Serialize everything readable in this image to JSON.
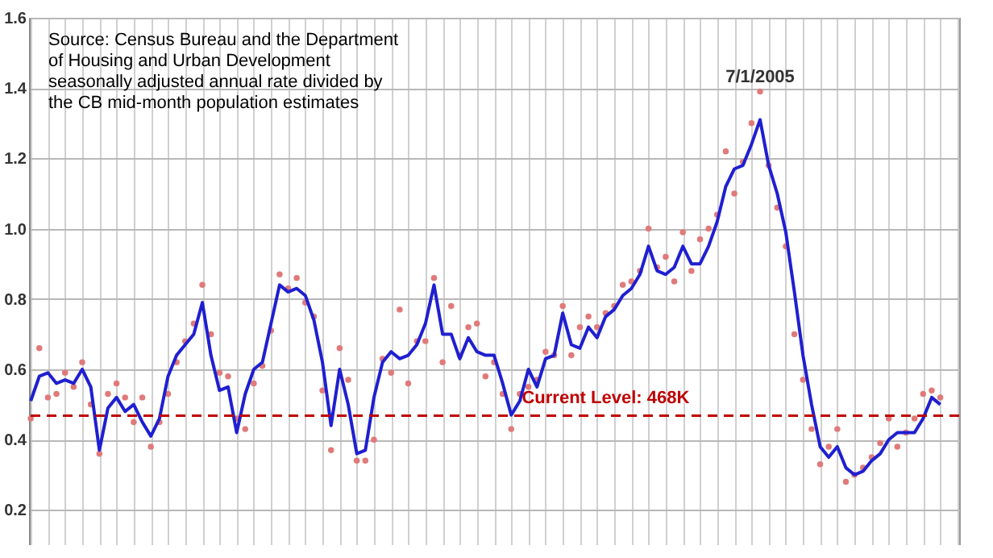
{
  "chart_data": {
    "type": "line",
    "annotations": [
      "Source: Census Bureau and the Department\nof Housing and Urban Development\nseasonally adjusted annual rate divided by\nthe CB mid-month population estimates",
      {
        "text": "7/1/2005",
        "y": 1.39
      }
    ],
    "categories": [
      null,
      null,
      null,
      null,
      null,
      null,
      null,
      null,
      null,
      null,
      null,
      null,
      null,
      null,
      null,
      null,
      null,
      null,
      null,
      null,
      null,
      null,
      null,
      null,
      null,
      null,
      null,
      null,
      null,
      null,
      null,
      null,
      null,
      null,
      null,
      null,
      null,
      null,
      null,
      null,
      null,
      null,
      null,
      null,
      null,
      null,
      null,
      null,
      null,
      null,
      null,
      null,
      null,
      null,
      null,
      null,
      null,
      null,
      null,
      null,
      null,
      null,
      null,
      null,
      null,
      null,
      null,
      null,
      null,
      null,
      null,
      null,
      null,
      null,
      null,
      null,
      null,
      null,
      null,
      null,
      null,
      null,
      null,
      null,
      null,
      null,
      null,
      null,
      null,
      null,
      null,
      null,
      null,
      null,
      null,
      null,
      null,
      null,
      null,
      null,
      null,
      null,
      null,
      null,
      null,
      null,
      null,
      null,
      null
    ],
    "ylim": [
      0.1,
      1.6
    ],
    "yticks": [
      0.2,
      0.4,
      0.6,
      0.8,
      {
        "value": 1,
        "label": "1.0"
      },
      1.2,
      1.4,
      1.6
    ],
    "grid": true,
    "tick_labels": "y",
    "ref_lines": [
      {
        "axis": "y",
        "value": 0.468,
        "label": "Current Level: 468K",
        "color": "#c00000",
        "line_style": "dashed"
      }
    ],
    "series": [
      {
        "type": "scatter",
        "marker": "circle",
        "color": "#e07a7a",
        "values": [
          0.46,
          0.66,
          0.52,
          0.53,
          0.59,
          0.55,
          0.62,
          0.5,
          0.36,
          0.53,
          0.56,
          0.52,
          0.45,
          0.52,
          0.38,
          0.45,
          0.53,
          0.62,
          0.68,
          0.73,
          0.84,
          0.7,
          0.59,
          0.58,
          0.46,
          0.43,
          0.56,
          0.61,
          0.71,
          0.87,
          0.83,
          0.86,
          0.79,
          0.75,
          0.54,
          0.37,
          0.66,
          0.57,
          0.34,
          0.34,
          0.4,
          0.63,
          0.59,
          0.77,
          0.56,
          0.68,
          0.68,
          0.86,
          0.62,
          0.78,
          0.64,
          0.72,
          0.73,
          0.58,
          0.62,
          0.53,
          0.43,
          0.53,
          0.55,
          0.57,
          0.65,
          0.64,
          0.78,
          0.64,
          0.72,
          0.75,
          0.72,
          0.76,
          0.78,
          0.84,
          0.85,
          0.88,
          1.0,
          0.89,
          0.92,
          0.85,
          0.99,
          0.88,
          0.97,
          1.0,
          1.04,
          1.22,
          1.1,
          1.19,
          1.3,
          1.39,
          1.18,
          1.06,
          0.95,
          0.7,
          0.57,
          0.43,
          0.33,
          0.38,
          0.43,
          0.28,
          0.3,
          0.32,
          0.35,
          0.39,
          0.46,
          0.38,
          0.42,
          0.46,
          0.53,
          0.54,
          0.52,
          null,
          null
        ]
      },
      {
        "color": "#1f1fd0",
        "values": [
          0.51,
          0.58,
          0.59,
          0.56,
          0.57,
          0.56,
          0.6,
          0.55,
          0.37,
          0.49,
          0.52,
          0.48,
          0.5,
          0.45,
          0.41,
          0.46,
          0.58,
          0.64,
          0.67,
          0.7,
          0.79,
          0.64,
          0.54,
          0.55,
          0.42,
          0.53,
          0.6,
          0.62,
          0.73,
          0.84,
          0.82,
          0.83,
          0.81,
          0.74,
          0.62,
          0.44,
          0.6,
          0.5,
          0.36,
          0.37,
          0.52,
          0.62,
          0.65,
          0.63,
          0.64,
          0.67,
          0.73,
          0.84,
          0.7,
          0.7,
          0.63,
          0.69,
          0.65,
          0.64,
          0.64,
          0.56,
          0.47,
          0.51,
          0.6,
          0.55,
          0.63,
          0.64,
          0.76,
          0.67,
          0.66,
          0.72,
          0.69,
          0.75,
          0.77,
          0.81,
          0.83,
          0.87,
          0.95,
          0.88,
          0.87,
          0.89,
          0.95,
          0.9,
          0.9,
          0.95,
          1.02,
          1.12,
          1.17,
          1.18,
          1.24,
          1.31,
          1.18,
          1.1,
          0.99,
          0.82,
          0.64,
          0.5,
          0.38,
          0.35,
          0.38,
          0.32,
          0.3,
          0.31,
          0.34,
          0.36,
          0.4,
          0.42,
          0.42,
          0.42,
          0.46,
          0.52,
          0.5,
          null,
          null
        ]
      }
    ]
  }
}
